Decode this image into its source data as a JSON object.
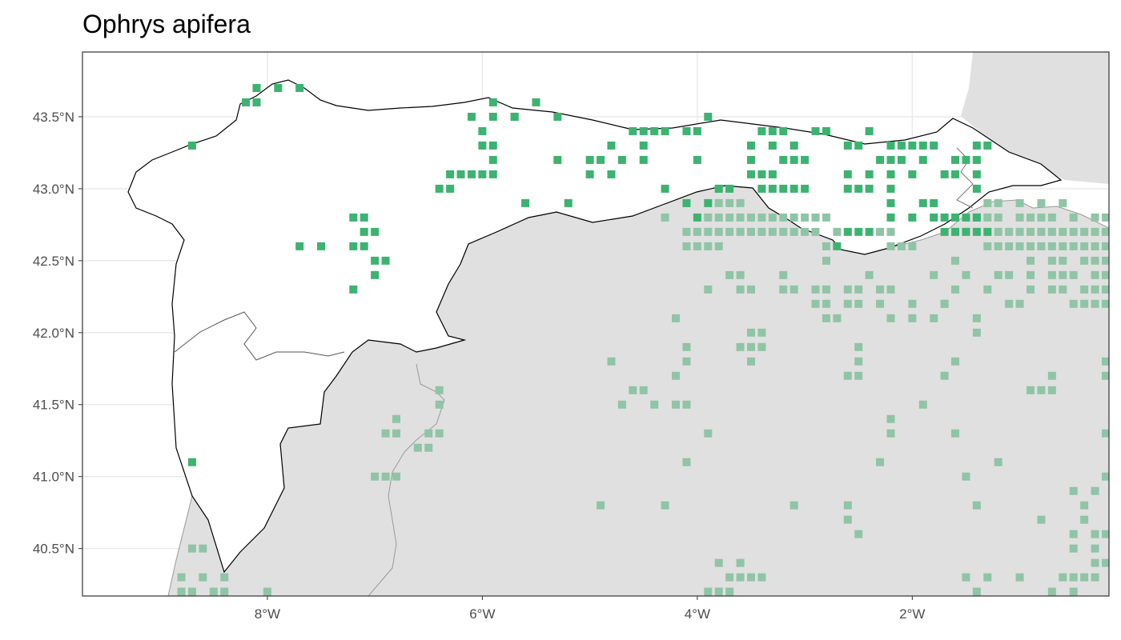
{
  "title": "Ophrys apifera",
  "colors": {
    "in_region": "#3cb371",
    "out_region": "#90c4a6",
    "land_outside": "#e0e0e0",
    "grid": "#ebebeb",
    "border": "#333333"
  },
  "axes": {
    "x_ticks": [
      {
        "value": -8,
        "label": "8°W"
      },
      {
        "value": -6,
        "label": "6°W"
      },
      {
        "value": -4,
        "label": "4°W"
      },
      {
        "value": -2,
        "label": "2°W"
      }
    ],
    "y_ticks": [
      {
        "value": 43.5,
        "label": "43.5°N"
      },
      {
        "value": 43.0,
        "label": "43.0°N"
      },
      {
        "value": 42.5,
        "label": "42.5°N"
      },
      {
        "value": 42.0,
        "label": "42.0°N"
      },
      {
        "value": 41.5,
        "label": "41.5°N"
      },
      {
        "value": 41.0,
        "label": "41.0°N"
      },
      {
        "value": 40.5,
        "label": "40.5°N"
      }
    ],
    "xlim": [
      -9.72,
      -0.17
    ],
    "ylim": [
      40.17,
      43.95
    ]
  },
  "records_in_region": [
    [
      -8.7,
      43.3
    ],
    [
      -8.2,
      43.6
    ],
    [
      -8.1,
      43.6
    ],
    [
      -8.1,
      43.7
    ],
    [
      -7.9,
      43.7
    ],
    [
      -7.7,
      43.7
    ],
    [
      -6.1,
      43.5
    ],
    [
      -5.9,
      43.6
    ],
    [
      -5.9,
      43.5
    ],
    [
      -6,
      43.4
    ],
    [
      -6,
      43.3
    ],
    [
      -5.9,
      43.3
    ],
    [
      -5.9,
      43.2
    ],
    [
      -6.1,
      43.1
    ],
    [
      -6,
      43.1
    ],
    [
      -5.9,
      43.1
    ],
    [
      -6.2,
      43.1
    ],
    [
      -6.3,
      43.1
    ],
    [
      -6.3,
      43
    ],
    [
      -6.4,
      43
    ],
    [
      -5.7,
      43.5
    ],
    [
      -5.7,
      43.5
    ],
    [
      -5.5,
      43.6
    ],
    [
      -5.3,
      43.5
    ],
    [
      -5.3,
      43.2
    ],
    [
      -5.6,
      42.9
    ],
    [
      -5.2,
      42.9
    ],
    [
      -5,
      43.2
    ],
    [
      -4.9,
      43.2
    ],
    [
      -5,
      43.1
    ],
    [
      -4.8,
      43.3
    ],
    [
      -4.8,
      43.1
    ],
    [
      -4.7,
      43.2
    ],
    [
      -4.6,
      43.4
    ],
    [
      -4.5,
      43.4
    ],
    [
      -4.4,
      43.4
    ],
    [
      -4.3,
      43.4
    ],
    [
      -4.5,
      43.3
    ],
    [
      -4.5,
      43.2
    ],
    [
      -4.3,
      43
    ],
    [
      -4.1,
      43.4
    ],
    [
      -4,
      43.4
    ],
    [
      -3.9,
      43.5
    ],
    [
      -4,
      43.2
    ],
    [
      -4.1,
      42.9
    ],
    [
      -3.8,
      43
    ],
    [
      -3.7,
      43
    ],
    [
      -4,
      42.8
    ],
    [
      -3.9,
      42.9
    ],
    [
      -3.5,
      43.3
    ],
    [
      -3.5,
      43.2
    ],
    [
      -3.5,
      43.1
    ],
    [
      -3.4,
      43.1
    ],
    [
      -3.3,
      43.1
    ],
    [
      -3.4,
      43
    ],
    [
      -3.3,
      43
    ],
    [
      -3.2,
      43
    ],
    [
      -3.1,
      43
    ],
    [
      -3,
      43
    ],
    [
      -3.4,
      43.4
    ],
    [
      -3.3,
      43.4
    ],
    [
      -3.2,
      43.4
    ],
    [
      -3.3,
      43.3
    ],
    [
      -3.1,
      43.3
    ],
    [
      -3.2,
      43.2
    ],
    [
      -3.1,
      43.2
    ],
    [
      -3,
      43.2
    ],
    [
      -2.9,
      43.4
    ],
    [
      -2.8,
      43.4
    ],
    [
      -2.6,
      43.3
    ],
    [
      -2.5,
      43.3
    ],
    [
      -2.4,
      43.4
    ],
    [
      -2.2,
      43.3
    ],
    [
      -2.1,
      43.3
    ],
    [
      -2,
      43.3
    ],
    [
      -1.9,
      43.3
    ],
    [
      -2.3,
      43.2
    ],
    [
      -2.2,
      43.2
    ],
    [
      -2.1,
      43.2
    ],
    [
      -2.4,
      43.1
    ],
    [
      -2.2,
      43.1
    ],
    [
      -2,
      43.1
    ],
    [
      -2.6,
      43.1
    ],
    [
      -2.5,
      43
    ],
    [
      -2.6,
      43
    ],
    [
      -2.4,
      43
    ],
    [
      -2.2,
      43
    ],
    [
      -1.8,
      43.3
    ],
    [
      -1.6,
      43.2
    ],
    [
      -1.5,
      43.2
    ],
    [
      -1.4,
      43.2
    ],
    [
      -1.7,
      43.1
    ],
    [
      -1.6,
      43.1
    ],
    [
      -1.4,
      43.1
    ],
    [
      -1.4,
      43
    ],
    [
      -1.9,
      42.9
    ],
    [
      -1.8,
      42.9
    ],
    [
      -1.7,
      42.8
    ],
    [
      -1.6,
      42.8
    ],
    [
      -1.5,
      42.8
    ],
    [
      -1.4,
      42.8
    ],
    [
      -1.3,
      42.7
    ],
    [
      -1.4,
      42.7
    ],
    [
      -1.5,
      42.7
    ],
    [
      -1.6,
      42.7
    ],
    [
      -1.7,
      42.7
    ],
    [
      -1.8,
      42.8
    ],
    [
      -2,
      42.8
    ],
    [
      -2.2,
      42.8
    ],
    [
      -2.2,
      42.9
    ],
    [
      -2.4,
      42.7
    ],
    [
      -2.5,
      42.7
    ],
    [
      -2.6,
      42.7
    ],
    [
      -2.7,
      42.6
    ],
    [
      -7.2,
      42.8
    ],
    [
      -7.1,
      42.8
    ],
    [
      -7.1,
      42.7
    ],
    [
      -7,
      42.7
    ],
    [
      -7.1,
      42.6
    ],
    [
      -7.7,
      42.6
    ],
    [
      -7.5,
      42.6
    ],
    [
      -7.2,
      42.6
    ],
    [
      -7,
      42.5
    ],
    [
      -6.9,
      42.5
    ],
    [
      -7,
      42.4
    ],
    [
      -7.2,
      42.3
    ],
    [
      -8.7,
      41.1
    ],
    [
      -1.4,
      43.3
    ],
    [
      -1.3,
      43.3
    ],
    [
      -1.9,
      43.2
    ]
  ],
  "records_outside": [
    [
      -4.3,
      42.8
    ],
    [
      -4,
      42.7
    ],
    [
      -3.9,
      42.7
    ],
    [
      -3.8,
      42.7
    ],
    [
      -3.7,
      42.7
    ],
    [
      -3.6,
      42.7
    ],
    [
      -3.5,
      42.7
    ],
    [
      -3.4,
      42.7
    ],
    [
      -3.3,
      42.7
    ],
    [
      -3.2,
      42.7
    ],
    [
      -3.1,
      42.7
    ],
    [
      -3,
      42.7
    ],
    [
      -2.9,
      42.7
    ],
    [
      -4.1,
      42.6
    ],
    [
      -4,
      42.6
    ],
    [
      -3.9,
      42.6
    ],
    [
      -3.8,
      42.6
    ],
    [
      -4.1,
      42.7
    ],
    [
      -3.9,
      42.8
    ],
    [
      -3.8,
      42.8
    ],
    [
      -3.7,
      42.8
    ],
    [
      -3.6,
      42.8
    ],
    [
      -3.5,
      42.8
    ],
    [
      -3.4,
      42.8
    ],
    [
      -3.3,
      42.8
    ],
    [
      -3.2,
      42.8
    ],
    [
      -3.1,
      42.8
    ],
    [
      -3,
      42.8
    ],
    [
      -2.9,
      42.8
    ],
    [
      -2.8,
      42.8
    ],
    [
      -3.8,
      42.9
    ],
    [
      -3.7,
      42.9
    ],
    [
      -3.6,
      42.9
    ],
    [
      -3.8,
      43
    ],
    [
      -2.8,
      42.6
    ],
    [
      -2.7,
      42.7
    ],
    [
      -2.8,
      42.5
    ],
    [
      -2.2,
      42.6
    ],
    [
      -2.1,
      42.6
    ],
    [
      -2,
      42.6
    ],
    [
      -2.3,
      42.7
    ],
    [
      -2.2,
      42.7
    ],
    [
      -1.3,
      42.6
    ],
    [
      -1.2,
      42.6
    ],
    [
      -1.1,
      42.6
    ],
    [
      -1,
      42.6
    ],
    [
      -0.9,
      42.6
    ],
    [
      -0.8,
      42.6
    ],
    [
      -0.7,
      42.6
    ],
    [
      -0.6,
      42.6
    ],
    [
      -0.5,
      42.6
    ],
    [
      -0.4,
      42.6
    ],
    [
      -0.3,
      42.6
    ],
    [
      -0.2,
      42.6
    ],
    [
      -1.2,
      42.7
    ],
    [
      -1.1,
      42.7
    ],
    [
      -1,
      42.7
    ],
    [
      -0.9,
      42.7
    ],
    [
      -0.8,
      42.7
    ],
    [
      -0.7,
      42.7
    ],
    [
      -0.6,
      42.7
    ],
    [
      -0.5,
      42.7
    ],
    [
      -0.4,
      42.7
    ],
    [
      -0.3,
      42.7
    ],
    [
      -0.2,
      42.7
    ],
    [
      -1.4,
      42.8
    ],
    [
      -1.3,
      42.8
    ],
    [
      -1.2,
      42.8
    ],
    [
      -1,
      42.8
    ],
    [
      -0.9,
      42.8
    ],
    [
      -0.8,
      42.8
    ],
    [
      -0.7,
      42.8
    ],
    [
      -0.5,
      42.8
    ],
    [
      -0.3,
      42.8
    ],
    [
      -0.2,
      42.8
    ],
    [
      -1.3,
      42.9
    ],
    [
      -1.2,
      42.9
    ],
    [
      -1,
      42.9
    ],
    [
      -0.8,
      42.9
    ],
    [
      -0.6,
      42.9
    ],
    [
      -0.9,
      42.5
    ],
    [
      -0.7,
      42.5
    ],
    [
      -0.6,
      42.5
    ],
    [
      -0.4,
      42.5
    ],
    [
      -0.3,
      42.5
    ],
    [
      -0.2,
      42.5
    ],
    [
      -1.2,
      42.4
    ],
    [
      -1.1,
      42.4
    ],
    [
      -0.9,
      42.4
    ],
    [
      -0.7,
      42.4
    ],
    [
      -0.6,
      42.4
    ],
    [
      -0.5,
      42.4
    ],
    [
      -0.3,
      42.4
    ],
    [
      -0.2,
      42.4
    ],
    [
      -1.3,
      42.3
    ],
    [
      -0.9,
      42.3
    ],
    [
      -0.7,
      42.3
    ],
    [
      -0.6,
      42.3
    ],
    [
      -0.4,
      42.3
    ],
    [
      -0.3,
      42.3
    ],
    [
      -0.2,
      42.3
    ],
    [
      -1.1,
      42.2
    ],
    [
      -1,
      42.2
    ],
    [
      -0.5,
      42.2
    ],
    [
      -0.4,
      42.2
    ],
    [
      -0.3,
      42.2
    ],
    [
      -0.2,
      42.2
    ],
    [
      -1.6,
      42.5
    ],
    [
      -1.5,
      42.4
    ],
    [
      -1.6,
      42.3
    ],
    [
      -1.7,
      42.2
    ],
    [
      -1.8,
      42.4
    ],
    [
      -2,
      42.2
    ],
    [
      -2.2,
      42.3
    ],
    [
      -2.3,
      42.2
    ],
    [
      -2.5,
      42.3
    ],
    [
      -2.6,
      42.3
    ],
    [
      -2.6,
      42.2
    ],
    [
      -2.5,
      42.2
    ],
    [
      -2.7,
      42.1
    ],
    [
      -2.8,
      42.2
    ],
    [
      -2.8,
      42.3
    ],
    [
      -2.9,
      42.3
    ],
    [
      -2.9,
      42.2
    ],
    [
      -2.8,
      42.1
    ],
    [
      -2.4,
      42.4
    ],
    [
      -2.3,
      42.3
    ],
    [
      -2.2,
      42.1
    ],
    [
      -2,
      42.1
    ],
    [
      -1.7,
      42.2
    ],
    [
      -3.2,
      42.4
    ],
    [
      -3.1,
      42.3
    ],
    [
      -3.2,
      42.3
    ],
    [
      -3.5,
      42.3
    ],
    [
      -3.6,
      42.3
    ],
    [
      -3.7,
      42.4
    ],
    [
      -3.9,
      42.3
    ],
    [
      -3.6,
      42.4
    ],
    [
      -3.5,
      42
    ],
    [
      -3.5,
      41.9
    ],
    [
      -3.5,
      41.8
    ],
    [
      -3.6,
      41.9
    ],
    [
      -3.4,
      42
    ],
    [
      -3.4,
      41.9
    ],
    [
      -4.2,
      42.1
    ],
    [
      -4.1,
      41.9
    ],
    [
      -4.1,
      41.8
    ],
    [
      -4.2,
      41.7
    ],
    [
      -4.5,
      41.6
    ],
    [
      -4.4,
      41.5
    ],
    [
      -4.2,
      41.5
    ],
    [
      -4.1,
      41.5
    ],
    [
      -4.6,
      41.6
    ],
    [
      -4.7,
      41.5
    ],
    [
      -4.8,
      41.8
    ],
    [
      -3.9,
      41.3
    ],
    [
      -4.1,
      41.1
    ],
    [
      -2.5,
      41.9
    ],
    [
      -2.5,
      41.8
    ],
    [
      -2.5,
      41.7
    ],
    [
      -2.6,
      41.7
    ],
    [
      -2.2,
      41.4
    ],
    [
      -2.2,
      41.3
    ],
    [
      -1.9,
      41.5
    ],
    [
      -1.7,
      41.7
    ],
    [
      -1.6,
      41.8
    ],
    [
      -1.6,
      41.3
    ],
    [
      -1.5,
      41
    ],
    [
      -1.4,
      42.1
    ],
    [
      -1.4,
      42
    ],
    [
      -2.3,
      41.1
    ],
    [
      -1.2,
      41.1
    ],
    [
      -0.9,
      41.6
    ],
    [
      -0.8,
      41.6
    ],
    [
      -0.7,
      41.6
    ],
    [
      -0.7,
      41.7
    ],
    [
      -0.2,
      41.8
    ],
    [
      -0.2,
      41.7
    ],
    [
      -0.2,
      41
    ],
    [
      -0.2,
      41.3
    ],
    [
      -0.3,
      40.9
    ],
    [
      -0.5,
      40.9
    ],
    [
      -0.4,
      40.8
    ],
    [
      -0.4,
      40.7
    ],
    [
      -0.5,
      40.6
    ],
    [
      -0.5,
      40.5
    ],
    [
      -0.3,
      40.6
    ],
    [
      -0.3,
      40.5
    ],
    [
      -0.2,
      40.6
    ],
    [
      -0.2,
      40.4
    ],
    [
      -0.3,
      40.4
    ],
    [
      -0.3,
      40.3
    ],
    [
      -0.4,
      40.3
    ],
    [
      -0.5,
      40.3
    ],
    [
      -0.6,
      40.3
    ],
    [
      -0.5,
      40.2
    ],
    [
      -0.7,
      40.2
    ],
    [
      -0.8,
      40.7
    ],
    [
      -1,
      40.3
    ],
    [
      -1.4,
      40.8
    ],
    [
      -1.3,
      40.3
    ],
    [
      -1.4,
      40.2
    ],
    [
      -1.5,
      40.3
    ],
    [
      -2.5,
      40.6
    ],
    [
      -2.6,
      40.8
    ],
    [
      -2.6,
      40.7
    ],
    [
      -3.1,
      40.8
    ],
    [
      -3.5,
      40.3
    ],
    [
      -3.4,
      40.3
    ],
    [
      -3.6,
      40.3
    ],
    [
      -3.6,
      40.4
    ],
    [
      -3.7,
      40.3
    ],
    [
      -3.7,
      40.2
    ],
    [
      -3.8,
      40.2
    ],
    [
      -3.8,
      40.4
    ],
    [
      -3.9,
      40.2
    ],
    [
      -4.3,
      40.8
    ],
    [
      -4.9,
      40.8
    ],
    [
      -6.4,
      41.6
    ],
    [
      -6.4,
      41.5
    ],
    [
      -6.4,
      41.3
    ],
    [
      -6.5,
      41.3
    ],
    [
      -6.5,
      41.2
    ],
    [
      -6.6,
      41.2
    ],
    [
      -6.8,
      41.4
    ],
    [
      -6.8,
      41.3
    ],
    [
      -6.9,
      41.3
    ],
    [
      -6.8,
      41
    ],
    [
      -6.9,
      41
    ],
    [
      -7,
      41
    ],
    [
      -8.7,
      40.5
    ],
    [
      -8.6,
      40.5
    ],
    [
      -8.8,
      40.3
    ],
    [
      -8.6,
      40.3
    ],
    [
      -8.5,
      40.2
    ],
    [
      -8.4,
      40.3
    ],
    [
      -8.4,
      40.2
    ],
    [
      -8.8,
      40.2
    ],
    [
      -8,
      40.2
    ],
    [
      -8.7,
      40.2
    ],
    [
      -8.4,
      40.1
    ],
    [
      -1.8,
      42.1
    ]
  ]
}
